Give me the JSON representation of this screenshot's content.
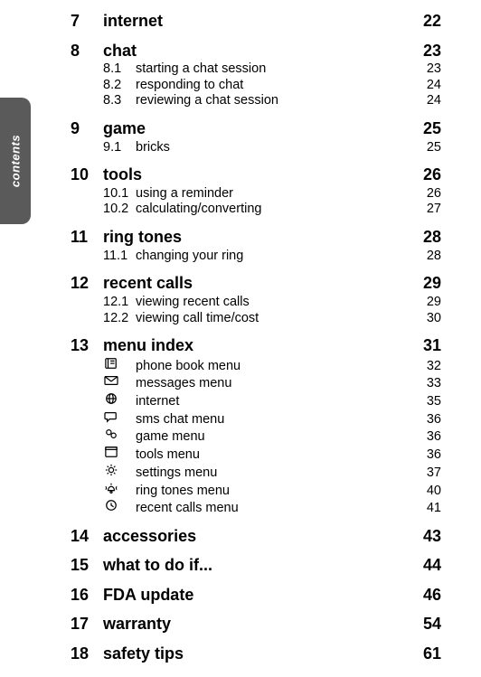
{
  "sideTab": {
    "label": "contents"
  },
  "sections": [
    {
      "num": "7",
      "title": "internet",
      "page": "22",
      "subs": []
    },
    {
      "num": "8",
      "title": "chat",
      "page": "23",
      "subs": [
        {
          "num": "8.1",
          "title": "starting a chat session",
          "page": "23"
        },
        {
          "num": "8.2",
          "title": "responding to chat",
          "page": "24"
        },
        {
          "num": "8.3",
          "title": "reviewing a chat session",
          "page": "24"
        }
      ]
    },
    {
      "num": "9",
      "title": "game",
      "page": "25",
      "subs": [
        {
          "num": "9.1",
          "title": "bricks",
          "page": "25"
        }
      ]
    },
    {
      "num": "10",
      "title": "tools",
      "page": "26",
      "subs": [
        {
          "num": "10.1",
          "title": "using a reminder",
          "page": "26"
        },
        {
          "num": "10.2",
          "title": "calculating/converting",
          "page": "27"
        }
      ]
    },
    {
      "num": "11",
      "title": "ring tones",
      "page": "28",
      "subs": [
        {
          "num": "11.1",
          "title": "changing your ring",
          "page": "28"
        }
      ]
    },
    {
      "num": "12",
      "title": "recent calls",
      "page": "29",
      "subs": [
        {
          "num": "12.1",
          "title": "viewing recent calls",
          "page": "29"
        },
        {
          "num": "12.2",
          "title": "viewing call time/cost",
          "page": "30"
        }
      ]
    },
    {
      "num": "13",
      "title": "menu index",
      "page": "31",
      "subs": [
        {
          "icon": "phonebook",
          "title": "phone book menu",
          "page": "32"
        },
        {
          "icon": "messages",
          "title": "messages menu",
          "page": "33"
        },
        {
          "icon": "internet",
          "title": "internet",
          "page": "35"
        },
        {
          "icon": "smschat",
          "title": "sms chat menu",
          "page": "36"
        },
        {
          "icon": "game",
          "title": "game menu",
          "page": "36"
        },
        {
          "icon": "tools",
          "title": "tools menu",
          "page": "36"
        },
        {
          "icon": "settings",
          "title": "settings menu",
          "page": "37"
        },
        {
          "icon": "ringtones",
          "title": "ring tones menu",
          "page": "40"
        },
        {
          "icon": "recentcalls",
          "title": "recent calls menu",
          "page": "41"
        }
      ]
    },
    {
      "num": "14",
      "title": "accessories",
      "page": "43",
      "subs": []
    },
    {
      "num": "15",
      "title": "what to do if...",
      "page": "44",
      "subs": []
    },
    {
      "num": "16",
      "title": "FDA update",
      "page": "46",
      "subs": []
    },
    {
      "num": "17",
      "title": "warranty",
      "page": "54",
      "subs": []
    },
    {
      "num": "18",
      "title": "safety tips",
      "page": "61",
      "subs": []
    }
  ]
}
